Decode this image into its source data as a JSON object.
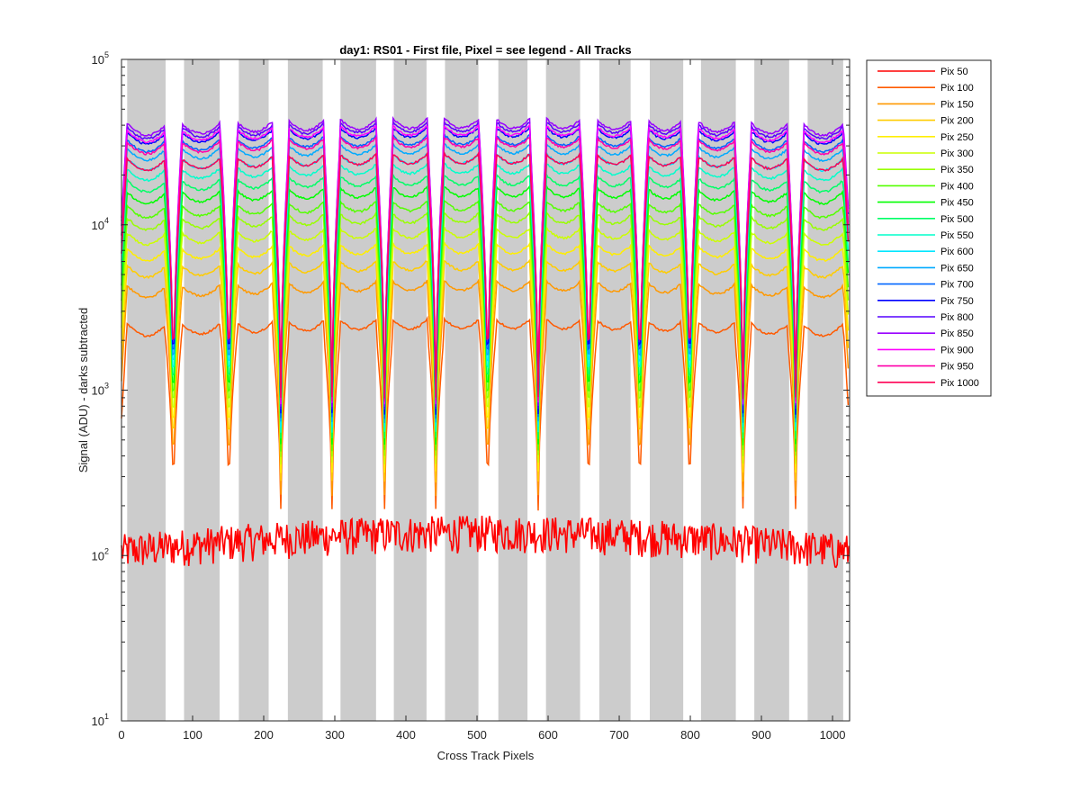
{
  "chart_data": {
    "type": "line",
    "title": "day1: RS01 - First file, Pixel = see legend - All Tracks",
    "xlabel": "Cross Track Pixels",
    "ylabel": "Signal (ADU) - darks subtracted",
    "xlim": [
      0,
      1024
    ],
    "ylim": [
      10,
      100000
    ],
    "yscale": "log",
    "x_ticks": [
      0,
      100,
      200,
      300,
      400,
      500,
      600,
      700,
      800,
      900,
      1000
    ],
    "y_ticks": [
      {
        "value": 10,
        "base": "10",
        "exp": "1"
      },
      {
        "value": 100,
        "base": "10",
        "exp": "2"
      },
      {
        "value": 1000,
        "base": "10",
        "exp": "3"
      },
      {
        "value": 10000,
        "base": "10",
        "exp": "4"
      },
      {
        "value": 100000,
        "base": "10",
        "exp": "5"
      }
    ],
    "grid": false,
    "legend_position": "outside-right",
    "track_bands_color": "#cccccc",
    "track_bands": [
      [
        8,
        62
      ],
      [
        88,
        138
      ],
      [
        165,
        207
      ],
      [
        234,
        283
      ],
      [
        308,
        358
      ],
      [
        383,
        429
      ],
      [
        455,
        502
      ],
      [
        530,
        571
      ],
      [
        597,
        645
      ],
      [
        672,
        716
      ],
      [
        743,
        790
      ],
      [
        815,
        864
      ],
      [
        890,
        939
      ],
      [
        965,
        1015
      ]
    ],
    "dip_centers": [
      73,
      151,
      224,
      296,
      370,
      442,
      515,
      586,
      657,
      729,
      799,
      874,
      948
    ],
    "series": [
      {
        "name": "Pix 50",
        "color": "#ff0000",
        "base": 110,
        "dip": 100
      },
      {
        "name": "Pix 100",
        "color": "#ff5a00",
        "base": 2700,
        "dip": 190
      },
      {
        "name": "Pix 150",
        "color": "#ff9900",
        "base": 4600,
        "dip": 230
      },
      {
        "name": "Pix 200",
        "color": "#ffcc00",
        "base": 6100,
        "dip": 280
      },
      {
        "name": "Pix 250",
        "color": "#ffee00",
        "base": 7700,
        "dip": 320
      },
      {
        "name": "Pix 300",
        "color": "#ccff00",
        "base": 9600,
        "dip": 360
      },
      {
        "name": "Pix 350",
        "color": "#99ff00",
        "base": 11800,
        "dip": 400
      },
      {
        "name": "Pix 400",
        "color": "#55ff00",
        "base": 14000,
        "dip": 430
      },
      {
        "name": "Pix 450",
        "color": "#00ff00",
        "base": 17000,
        "dip": 470
      },
      {
        "name": "Pix 500",
        "color": "#00ff66",
        "base": 20000,
        "dip": 510
      },
      {
        "name": "Pix 550",
        "color": "#00ffcc",
        "base": 23500,
        "dip": 560
      },
      {
        "name": "Pix 600",
        "color": "#00e6ff",
        "base": 27000,
        "dip": 600
      },
      {
        "name": "Pix 650",
        "color": "#00aaff",
        "base": 31000,
        "dip": 640
      },
      {
        "name": "Pix 700",
        "color": "#0066ff",
        "base": 35000,
        "dip": 680
      },
      {
        "name": "Pix 750",
        "color": "#0000ff",
        "base": 39000,
        "dip": 720
      },
      {
        "name": "Pix 800",
        "color": "#5500ff",
        "base": 42000,
        "dip": 760
      },
      {
        "name": "Pix 850",
        "color": "#9900ff",
        "base": 44000,
        "dip": 800
      },
      {
        "name": "Pix 900",
        "color": "#ff00ff",
        "base": 40000,
        "dip": 830
      },
      {
        "name": "Pix 950",
        "color": "#ff00aa",
        "base": 34000,
        "dip": 860
      },
      {
        "name": "Pix 1000",
        "color": "#ff0055",
        "base": 27000,
        "dip": 900
      }
    ]
  }
}
